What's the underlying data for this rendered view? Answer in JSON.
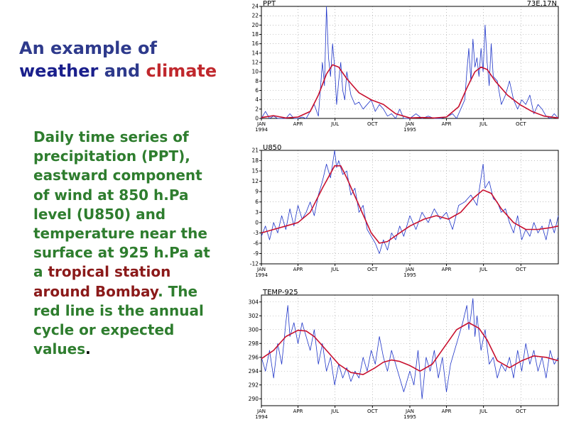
{
  "slide": {
    "title_part1": "An example of",
    "title_part2": "weather",
    "title_part3": "and",
    "title_part4": "climate",
    "desc_part1": "Daily time series of precipitation (PPT), eastward component of wind at 850 h.Pa level (U850) and temperature near the surface at 925 h.Pa  at a ",
    "desc_part2": "tropical station around Bombay",
    "desc_part3": ". The red line is the annual cycle or expected values",
    "desc_part4": "."
  },
  "colors": {
    "daily_series": "#1f35c8",
    "annual_cycle": "#c8102e",
    "grid": "#999999",
    "title_blue": "#2e3a8c",
    "text_green": "#2e7d2e",
    "highlight": "#8b1a1a"
  },
  "chart_data": [
    {
      "type": "line",
      "title": "PPT",
      "location": "73E,17N",
      "x_tick_labels": [
        {
          "month": "JAN",
          "year": "1994",
          "day": 0
        },
        {
          "month": "APR",
          "year": "",
          "day": 90
        },
        {
          "month": "JUL",
          "year": "",
          "day": 181
        },
        {
          "month": "OCT",
          "year": "",
          "day": 273
        },
        {
          "month": "JAN",
          "year": "1995",
          "day": 365
        },
        {
          "month": "APR",
          "year": "",
          "day": 455
        },
        {
          "month": "JUL",
          "year": "",
          "day": 546
        },
        {
          "month": "OCT",
          "year": "",
          "day": 638
        }
      ],
      "xlim": [
        0,
        730
      ],
      "ylim": [
        0,
        24
      ],
      "y_ticks": [
        0,
        2,
        4,
        6,
        8,
        10,
        12,
        14,
        16,
        18,
        20,
        22,
        24
      ],
      "grid": true,
      "series": [
        {
          "role": "annual_cycle",
          "x": [
            0,
            30,
            60,
            90,
            120,
            140,
            160,
            175,
            190,
            210,
            240,
            270,
            300,
            330,
            365,
            395,
            425,
            455,
            485,
            505,
            525,
            540,
            555,
            575,
            605,
            635,
            665,
            695,
            730
          ],
          "y": [
            0.2,
            0.6,
            0.1,
            0.3,
            1.5,
            5,
            9.5,
            11.5,
            11,
            8.5,
            5.5,
            4,
            3,
            1,
            0.1,
            0.2,
            0.1,
            0.3,
            2.5,
            6.5,
            10,
            11,
            10.5,
            8,
            5,
            3,
            1.5,
            0.5,
            0.1
          ]
        },
        {
          "role": "daily",
          "x": [
            0,
            10,
            20,
            30,
            40,
            50,
            60,
            70,
            80,
            90,
            100,
            110,
            120,
            130,
            140,
            150,
            155,
            160,
            165,
            170,
            175,
            180,
            185,
            190,
            195,
            200,
            205,
            210,
            220,
            230,
            240,
            250,
            260,
            270,
            280,
            290,
            300,
            310,
            320,
            330,
            340,
            350,
            365,
            380,
            395,
            410,
            425,
            440,
            455,
            470,
            480,
            490,
            500,
            505,
            510,
            515,
            520,
            525,
            530,
            535,
            540,
            545,
            550,
            555,
            560,
            565,
            570,
            580,
            590,
            600,
            610,
            620,
            630,
            640,
            650,
            660,
            670,
            680,
            690,
            700,
            710,
            720,
            730
          ],
          "y": [
            0,
            1.5,
            0,
            0.5,
            0,
            0,
            0,
            1,
            0,
            0,
            0.3,
            0,
            1.5,
            3,
            0.5,
            12,
            7,
            24,
            13,
            9,
            16,
            11,
            3,
            8,
            12,
            6,
            4,
            10,
            5,
            3,
            3.5,
            2,
            3,
            4,
            1.5,
            3,
            2,
            0.5,
            1,
            0,
            2,
            0,
            0,
            1,
            0,
            0.5,
            0,
            0,
            0.3,
            1,
            0,
            2,
            4,
            10,
            15,
            8,
            17,
            11,
            13,
            9,
            15,
            10,
            20,
            12,
            7,
            16,
            9,
            8,
            3,
            5,
            8,
            4,
            2,
            4,
            3,
            5,
            1,
            3,
            2,
            0.5,
            0,
            1,
            0
          ]
        }
      ]
    },
    {
      "type": "line",
      "title": "U850",
      "x_tick_labels": [
        {
          "month": "JAN",
          "year": "1994",
          "day": 0
        },
        {
          "month": "APR",
          "year": "",
          "day": 90
        },
        {
          "month": "JUL",
          "year": "",
          "day": 181
        },
        {
          "month": "OCT",
          "year": "",
          "day": 273
        },
        {
          "month": "JAN",
          "year": "1995",
          "day": 365
        },
        {
          "month": "APR",
          "year": "",
          "day": 455
        },
        {
          "month": "JUL",
          "year": "",
          "day": 546
        },
        {
          "month": "OCT",
          "year": "",
          "day": 638
        }
      ],
      "xlim": [
        0,
        730
      ],
      "ylim": [
        -12,
        21
      ],
      "y_ticks": [
        -12,
        -9,
        -6,
        -3,
        0,
        3,
        6,
        9,
        12,
        15,
        18,
        21
      ],
      "grid": true,
      "series": [
        {
          "role": "annual_cycle",
          "x": [
            0,
            30,
            60,
            90,
            120,
            150,
            180,
            195,
            210,
            240,
            270,
            290,
            310,
            340,
            365,
            400,
            430,
            460,
            490,
            520,
            545,
            565,
            590,
            620,
            650,
            680,
            710,
            730
          ],
          "y": [
            -3,
            -2,
            -1,
            0,
            3,
            10,
            16.5,
            16.5,
            13,
            5,
            -3,
            -6,
            -5.5,
            -3,
            -1,
            1,
            2,
            1,
            3,
            7,
            9.5,
            8.5,
            4,
            0,
            -2,
            -2,
            -1.5,
            -1
          ]
        },
        {
          "role": "daily",
          "x": [
            0,
            10,
            20,
            30,
            40,
            50,
            60,
            70,
            80,
            90,
            100,
            110,
            120,
            130,
            140,
            150,
            160,
            170,
            180,
            185,
            190,
            200,
            210,
            220,
            230,
            240,
            250,
            260,
            270,
            280,
            290,
            300,
            310,
            320,
            330,
            340,
            350,
            365,
            380,
            395,
            410,
            425,
            440,
            455,
            470,
            485,
            500,
            515,
            530,
            540,
            545,
            550,
            560,
            570,
            580,
            590,
            600,
            610,
            620,
            630,
            640,
            650,
            660,
            670,
            680,
            690,
            700,
            710,
            720,
            730
          ],
          "y": [
            -4,
            -1,
            -5,
            0,
            -3,
            2,
            -2,
            4,
            -1,
            5,
            1,
            3,
            6,
            2,
            8,
            12,
            17,
            13,
            21,
            16,
            18,
            14,
            15,
            8,
            10,
            3,
            5,
            -2,
            -4,
            -6,
            -9,
            -5,
            -8,
            -3,
            -5,
            -1,
            -4,
            2,
            -2,
            3,
            0,
            4,
            1,
            3,
            -2,
            5,
            6,
            8,
            5,
            13,
            17,
            10,
            12,
            7,
            6,
            3,
            4,
            0,
            -3,
            2,
            -5,
            -2,
            -4,
            0,
            -3,
            -1,
            -5,
            1,
            -3,
            2
          ]
        }
      ]
    },
    {
      "type": "line",
      "title": "TEMP-925",
      "x_tick_labels": [
        {
          "month": "JAN",
          "year": "1994",
          "day": 0
        },
        {
          "month": "APR",
          "year": "",
          "day": 90
        },
        {
          "month": "JUL",
          "year": "",
          "day": 181
        },
        {
          "month": "OCT",
          "year": "",
          "day": 273
        },
        {
          "month": "JAN",
          "year": "1995",
          "day": 365
        },
        {
          "month": "APR",
          "year": "",
          "day": 455
        },
        {
          "month": "JUL",
          "year": "",
          "day": 546
        },
        {
          "month": "OCT",
          "year": "",
          "day": 638
        }
      ],
      "xlim": [
        0,
        730
      ],
      "ylim": [
        289,
        305
      ],
      "y_ticks": [
        290,
        292,
        294,
        296,
        298,
        300,
        302,
        304
      ],
      "grid": true,
      "series": [
        {
          "role": "annual_cycle",
          "x": [
            0,
            30,
            60,
            90,
            110,
            130,
            160,
            190,
            220,
            250,
            280,
            300,
            320,
            340,
            365,
            390,
            420,
            450,
            480,
            510,
            535,
            555,
            580,
            610,
            640,
            670,
            700,
            730
          ],
          "y": [
            295.8,
            297,
            299,
            299.9,
            299.8,
            299,
            297,
            295,
            293.8,
            293.5,
            294.5,
            295.3,
            295.6,
            295.4,
            294.8,
            294,
            295,
            297.5,
            300,
            301,
            300.2,
            298.5,
            295.5,
            294.5,
            295.5,
            296.2,
            296,
            295.5
          ]
        },
        {
          "role": "daily",
          "x": [
            0,
            10,
            20,
            30,
            40,
            50,
            60,
            65,
            70,
            80,
            90,
            100,
            110,
            120,
            130,
            140,
            150,
            160,
            170,
            180,
            190,
            200,
            210,
            220,
            230,
            240,
            250,
            260,
            270,
            280,
            290,
            300,
            310,
            320,
            330,
            340,
            350,
            365,
            375,
            385,
            395,
            405,
            415,
            425,
            435,
            445,
            455,
            465,
            475,
            485,
            495,
            505,
            510,
            515,
            520,
            525,
            530,
            540,
            550,
            560,
            570,
            580,
            590,
            600,
            610,
            620,
            630,
            640,
            650,
            660,
            670,
            680,
            690,
            700,
            710,
            720,
            730
          ],
          "y": [
            296,
            294,
            297,
            293,
            298,
            295,
            301,
            303.5,
            299,
            301,
            298,
            301,
            299,
            297,
            300,
            295,
            298,
            294,
            296,
            292,
            295,
            293,
            294.5,
            292.5,
            294,
            293,
            296,
            294,
            297,
            295,
            299,
            296,
            294,
            297,
            295,
            293,
            291,
            294,
            292,
            297,
            290,
            296,
            294,
            297,
            293,
            296,
            291,
            295,
            297,
            299,
            301,
            303.5,
            300,
            302,
            304.5,
            299,
            302,
            297,
            300,
            295,
            296,
            293,
            295,
            294,
            296,
            293,
            297,
            294,
            298,
            295,
            297,
            294,
            296,
            293,
            297,
            295,
            296
          ]
        }
      ]
    }
  ]
}
